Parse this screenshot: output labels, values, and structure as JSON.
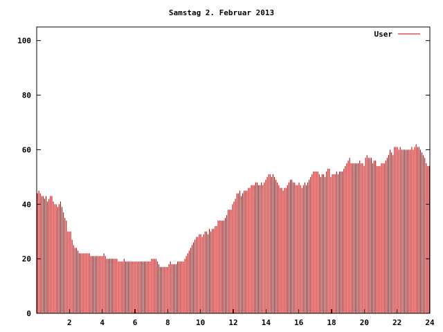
{
  "chart_data": {
    "type": "bar",
    "title": "Samstag 2. Februar 2013",
    "xlabel": "",
    "ylabel": "",
    "xlim": [
      0,
      24
    ],
    "ylim": [
      0,
      105
    ],
    "x_ticks": [
      2,
      4,
      6,
      8,
      10,
      12,
      14,
      16,
      18,
      20,
      22,
      24
    ],
    "y_ticks": [
      0,
      20,
      40,
      60,
      80,
      100
    ],
    "grid": false,
    "legend_position": "top-right",
    "series": [
      {
        "name": "User",
        "color": "#cc0000",
        "step_hours": 0.0833,
        "values": [
          44,
          45,
          44,
          43,
          43,
          42,
          43,
          41,
          42,
          43,
          43,
          41,
          40,
          40,
          39,
          40,
          41,
          39,
          37,
          35,
          34,
          30,
          30,
          30,
          27,
          25,
          24,
          24,
          23,
          22,
          22,
          22,
          22,
          22,
          22,
          22,
          22,
          21,
          21,
          21,
          21,
          21,
          21,
          21,
          21,
          21,
          22,
          21,
          20,
          20,
          20,
          20,
          20,
          20,
          20,
          20,
          19,
          19,
          19,
          19,
          20,
          19,
          19,
          19,
          19,
          19,
          19,
          19,
          19,
          19,
          19,
          19,
          19,
          19,
          19,
          19,
          19,
          19,
          19,
          20,
          20,
          20,
          20,
          19,
          18,
          17,
          17,
          17,
          17,
          17,
          17,
          18,
          19,
          18,
          18,
          18,
          18,
          19,
          19,
          19,
          19,
          19,
          20,
          21,
          22,
          23,
          24,
          25,
          26,
          27,
          28,
          28,
          29,
          29,
          28,
          29,
          30,
          30,
          29,
          31,
          30,
          31,
          31,
          32,
          32,
          34,
          34,
          34,
          34,
          34,
          35,
          36,
          38,
          38,
          38,
          40,
          41,
          42,
          44,
          44,
          45,
          43,
          44,
          45,
          45,
          45,
          46,
          46,
          47,
          47,
          47,
          48,
          48,
          47,
          47,
          48,
          47,
          48,
          49,
          50,
          51,
          51,
          50,
          51,
          50,
          49,
          48,
          47,
          46,
          46,
          45,
          46,
          46,
          47,
          48,
          49,
          49,
          48,
          48,
          47,
          47,
          48,
          47,
          46,
          47,
          48,
          47,
          48,
          49,
          50,
          51,
          52,
          52,
          52,
          52,
          51,
          50,
          51,
          51,
          50,
          52,
          53,
          53,
          50,
          51,
          51,
          51,
          52,
          51,
          52,
          52,
          52,
          53,
          54,
          55,
          56,
          57,
          55,
          55,
          55,
          55,
          55,
          55,
          56,
          55,
          55,
          54,
          57,
          58,
          57,
          57,
          57,
          55,
          56,
          56,
          54,
          54,
          54,
          55,
          55,
          55,
          56,
          57,
          58,
          60,
          59,
          58,
          61,
          61,
          61,
          60,
          61,
          60,
          60,
          60,
          60,
          60,
          60,
          60,
          61,
          60,
          61,
          62,
          61,
          61,
          60,
          59,
          58,
          57,
          55,
          54,
          54
        ]
      }
    ]
  }
}
